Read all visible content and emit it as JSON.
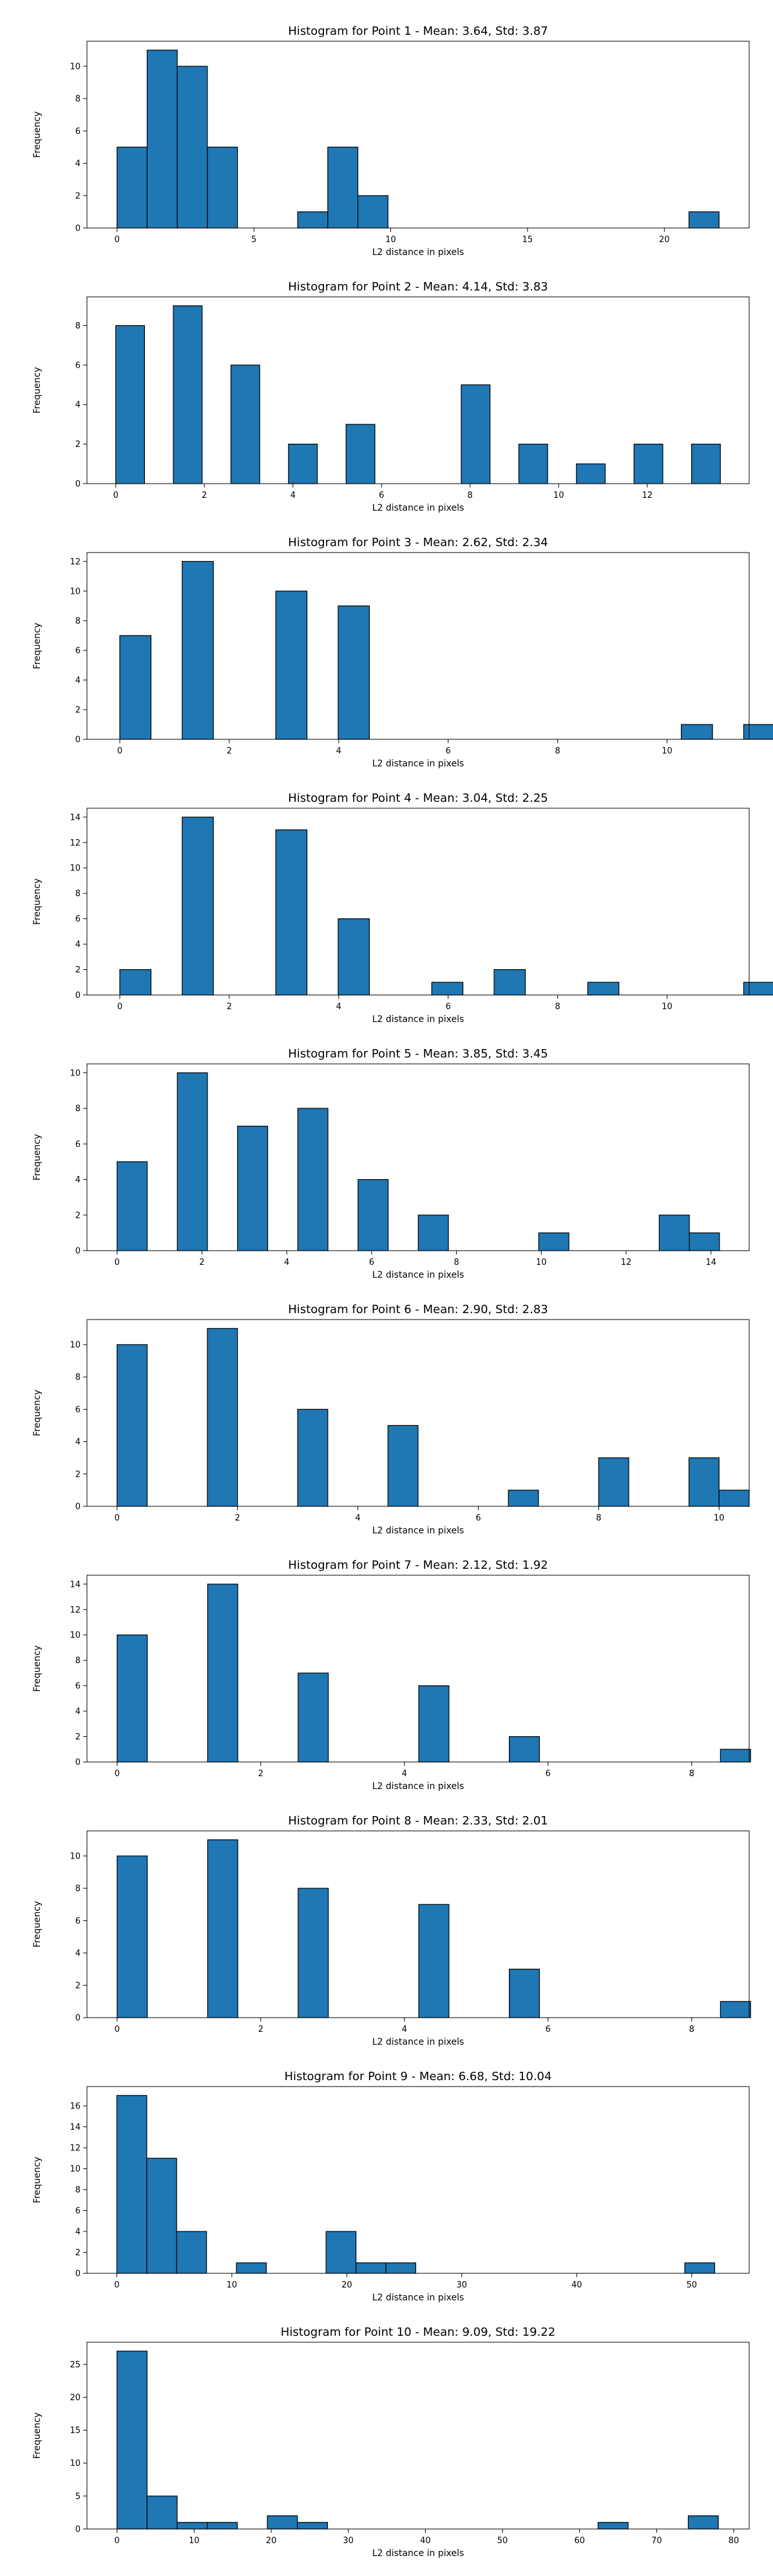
{
  "figure": {
    "background": "#ffffff"
  },
  "style": {
    "bar_color": "#1f77b4",
    "edge_color": "#000000"
  },
  "chart_data": [
    {
      "type": "bar",
      "title": "Histogram for Point 1 - Mean: 3.64, Std: 3.87",
      "xlabel": "L2 distance in pixels",
      "ylabel": "Frequency",
      "bin_start": 0,
      "bin_width": 1.1,
      "values": [
        5,
        11,
        10,
        5,
        0,
        0,
        1,
        5,
        2,
        0,
        0,
        0,
        0,
        0,
        0,
        0,
        0,
        0,
        0,
        1
      ],
      "xlim": [
        -1.1,
        23.1
      ],
      "ylim": [
        0,
        11.55
      ],
      "xticks": [
        0,
        5,
        10,
        15,
        20
      ],
      "yticks": [
        0,
        2,
        4,
        6,
        8,
        10
      ],
      "grid": false
    },
    {
      "type": "bar",
      "title": "Histogram for Point 2 - Mean: 4.14, Std: 3.83",
      "xlabel": "L2 distance in pixels",
      "ylabel": "Frequency",
      "bin_start": 0,
      "bin_width": 0.65,
      "values": [
        8,
        0,
        9,
        0,
        6,
        0,
        2,
        0,
        3,
        0,
        0,
        0,
        5,
        0,
        2,
        0,
        1,
        0,
        2,
        0,
        2
      ],
      "xlim": [
        -0.65,
        14.3
      ],
      "ylim": [
        0,
        9.45
      ],
      "xticks": [
        0,
        2,
        4,
        6,
        8,
        10,
        12
      ],
      "yticks": [
        0,
        2,
        4,
        6,
        8
      ],
      "grid": false
    },
    {
      "type": "bar",
      "title": "Histogram for Point 3 - Mean: 2.62, Std: 2.34",
      "xlabel": "L2 distance in pixels",
      "ylabel": "Frequency",
      "bin_start": 0,
      "bin_width": 0.57,
      "values": [
        7,
        0,
        12,
        0,
        0,
        10,
        0,
        9,
        0,
        0,
        0,
        0,
        0,
        0,
        0,
        0,
        0,
        0,
        1,
        0,
        1
      ],
      "xlim": [
        -0.6,
        11.5
      ],
      "ylim": [
        0,
        12.6
      ],
      "xticks": [
        0,
        2,
        4,
        6,
        8,
        10
      ],
      "yticks": [
        0,
        2,
        4,
        6,
        8,
        10,
        12
      ],
      "grid": false
    },
    {
      "type": "bar",
      "title": "Histogram for Point 4 - Mean: 3.04, Std: 2.25",
      "xlabel": "L2 distance in pixels",
      "ylabel": "Frequency",
      "bin_start": 0,
      "bin_width": 0.57,
      "values": [
        2,
        0,
        14,
        0,
        0,
        13,
        0,
        6,
        0,
        0,
        1,
        0,
        2,
        0,
        0,
        1,
        0,
        0,
        0,
        0,
        1
      ],
      "xlim": [
        -0.6,
        11.5
      ],
      "ylim": [
        0,
        14.7
      ],
      "xticks": [
        0,
        2,
        4,
        6,
        8,
        10
      ],
      "yticks": [
        0,
        2,
        4,
        6,
        8,
        10,
        12,
        14
      ],
      "grid": false
    },
    {
      "type": "bar",
      "title": "Histogram for Point 5 - Mean: 3.85, Std: 3.45",
      "xlabel": "L2 distance in pixels",
      "ylabel": "Frequency",
      "bin_start": 0,
      "bin_width": 0.71,
      "values": [
        5,
        0,
        10,
        0,
        7,
        0,
        8,
        0,
        4,
        0,
        2,
        0,
        0,
        0,
        1,
        0,
        0,
        0,
        2,
        1
      ],
      "xlim": [
        -0.71,
        14.9
      ],
      "ylim": [
        0,
        10.5
      ],
      "xticks": [
        0,
        2,
        4,
        6,
        8,
        10,
        12,
        14
      ],
      "yticks": [
        0,
        2,
        4,
        6,
        8,
        10
      ],
      "grid": false
    },
    {
      "type": "bar",
      "title": "Histogram for Point 6 - Mean: 2.90, Std: 2.83",
      "xlabel": "L2 distance in pixels",
      "ylabel": "Frequency",
      "bin_start": 0,
      "bin_width": 0.5,
      "values": [
        10,
        0,
        0,
        11,
        0,
        0,
        6,
        0,
        0,
        5,
        0,
        0,
        0,
        1,
        0,
        0,
        3,
        0,
        0,
        3,
        1
      ],
      "xlim": [
        -0.5,
        10.5
      ],
      "ylim": [
        0,
        11.55
      ],
      "xticks": [
        0,
        2,
        4,
        6,
        8,
        10
      ],
      "yticks": [
        0,
        2,
        4,
        6,
        8,
        10
      ],
      "grid": false
    },
    {
      "type": "bar",
      "title": "Histogram for Point 7 - Mean: 2.12, Std: 1.92",
      "xlabel": "L2 distance in pixels",
      "ylabel": "Frequency",
      "bin_start": 0,
      "bin_width": 0.42,
      "values": [
        10,
        0,
        0,
        14,
        0,
        0,
        7,
        0,
        0,
        0,
        6,
        0,
        0,
        2,
        0,
        0,
        0,
        0,
        0,
        0,
        1
      ],
      "xlim": [
        -0.42,
        8.8
      ],
      "ylim": [
        0,
        14.7
      ],
      "xticks": [
        0,
        2,
        4,
        6,
        8
      ],
      "yticks": [
        0,
        2,
        4,
        6,
        8,
        10,
        12,
        14
      ],
      "grid": false
    },
    {
      "type": "bar",
      "title": "Histogram for Point 8 - Mean: 2.33, Std: 2.01",
      "xlabel": "L2 distance in pixels",
      "ylabel": "Frequency",
      "bin_start": 0,
      "bin_width": 0.42,
      "values": [
        10,
        0,
        0,
        11,
        0,
        0,
        8,
        0,
        0,
        0,
        7,
        0,
        0,
        3,
        0,
        0,
        0,
        0,
        0,
        0,
        1
      ],
      "xlim": [
        -0.42,
        8.8
      ],
      "ylim": [
        0,
        11.55
      ],
      "xticks": [
        0,
        2,
        4,
        6,
        8
      ],
      "yticks": [
        0,
        2,
        4,
        6,
        8,
        10
      ],
      "grid": false
    },
    {
      "type": "bar",
      "title": "Histogram for Point 9 - Mean: 6.68, Std: 10.04",
      "xlabel": "L2 distance in pixels",
      "ylabel": "Frequency",
      "bin_start": 0,
      "bin_width": 2.6,
      "values": [
        17,
        11,
        4,
        0,
        1,
        0,
        0,
        4,
        1,
        1,
        0,
        0,
        0,
        0,
        0,
        0,
        0,
        0,
        0,
        1
      ],
      "xlim": [
        -2.6,
        55
      ],
      "ylim": [
        0,
        17.85
      ],
      "xticks": [
        0,
        10,
        20,
        30,
        40,
        50
      ],
      "yticks": [
        0,
        2,
        4,
        6,
        8,
        10,
        12,
        14,
        16
      ],
      "grid": false
    },
    {
      "type": "bar",
      "title": "Histogram for Point 10 - Mean: 9.09, Std: 19.22",
      "xlabel": "L2 distance in pixels",
      "ylabel": "Frequency",
      "bin_start": 0,
      "bin_width": 3.9,
      "values": [
        27,
        5,
        1,
        1,
        0,
        2,
        1,
        0,
        0,
        0,
        0,
        0,
        0,
        0,
        0,
        0,
        1,
        0,
        0,
        2
      ],
      "xlim": [
        -3.9,
        82
      ],
      "ylim": [
        0,
        28.35
      ],
      "xticks": [
        0,
        10,
        20,
        30,
        40,
        50,
        60,
        70,
        80
      ],
      "yticks": [
        0,
        5,
        10,
        15,
        20,
        25
      ],
      "grid": false
    }
  ]
}
